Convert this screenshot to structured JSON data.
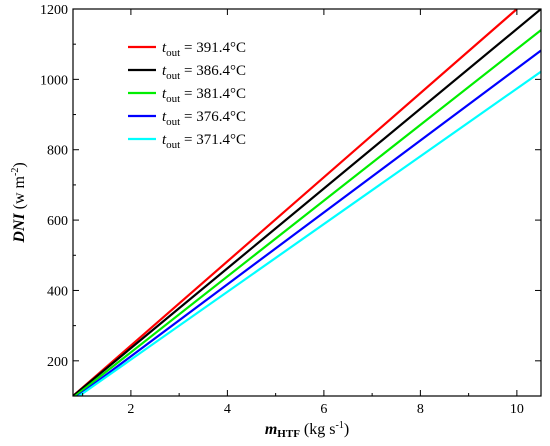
{
  "chart_data": {
    "type": "line",
    "title": "",
    "xlabel": {
      "main": "m",
      "sub": "HTF",
      "unit_pre": " (kg s",
      "unit_sup": "-1",
      "unit_post": ")"
    },
    "ylabel": {
      "main": "DNI",
      "unit_pre": " (w m",
      "unit_sup": "-2",
      "unit_post": ")"
    },
    "xlim": [
      0.8,
      10.5
    ],
    "ylim": [
      100,
      1200
    ],
    "xticks": [
      2,
      4,
      6,
      8,
      10
    ],
    "yticks": [
      200,
      400,
      600,
      800,
      1000,
      1200
    ],
    "grid": false,
    "legend_position": "top-left",
    "series": [
      {
        "name_main": "t",
        "name_sub": "out",
        "name_rest": " = 391.4°C",
        "color": "#ff0000",
        "points": [
          [
            0.8,
            100
          ],
          [
            10.0,
            1200
          ]
        ]
      },
      {
        "name_main": "t",
        "name_sub": "out",
        "name_rest": " = 386.4°C",
        "color": "#000000",
        "points": [
          [
            0.8,
            100
          ],
          [
            10.5,
            1200
          ]
        ]
      },
      {
        "name_main": "t",
        "name_sub": "out",
        "name_rest": " = 381.4°C",
        "color": "#00ee00",
        "points": [
          [
            0.8,
            95
          ],
          [
            10.5,
            1140
          ]
        ]
      },
      {
        "name_main": "t",
        "name_sub": "out",
        "name_rest": " = 376.4°C",
        "color": "#0000ff",
        "points": [
          [
            0.8,
            90
          ],
          [
            10.5,
            1082
          ]
        ]
      },
      {
        "name_main": "t",
        "name_sub": "out",
        "name_rest": " = 371.4°C",
        "color": "#00ffff",
        "points": [
          [
            0.8,
            88
          ],
          [
            10.5,
            1022
          ]
        ]
      }
    ]
  }
}
